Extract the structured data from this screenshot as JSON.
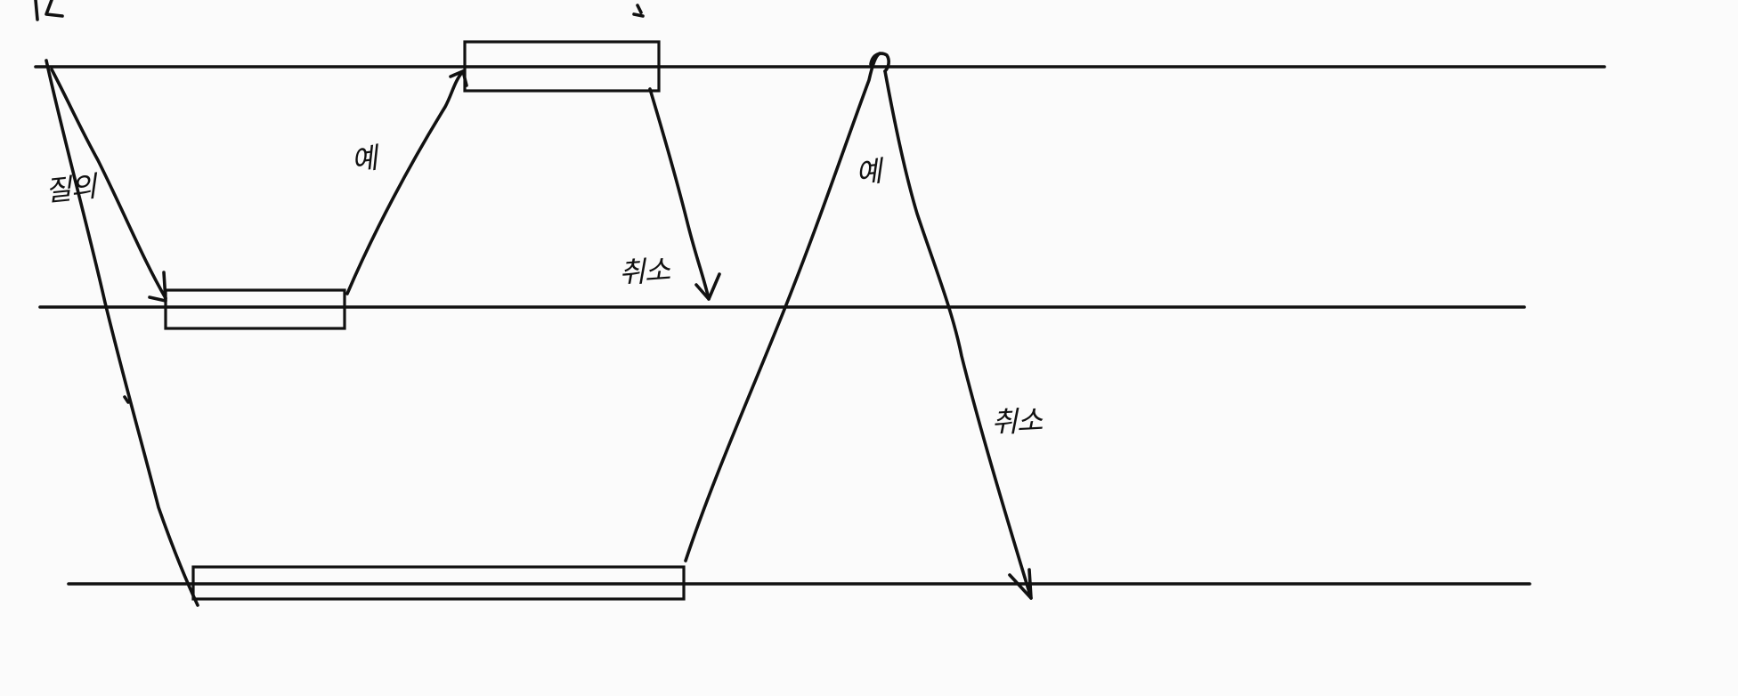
{
  "diagram": {
    "labels": {
      "question_1": "질의",
      "reply_1": "예",
      "reply_2": "예",
      "cancel_1": "취소",
      "cancel_2": "취소"
    },
    "colors": {
      "background": "#fbfbfb",
      "ink": "#111111"
    }
  }
}
